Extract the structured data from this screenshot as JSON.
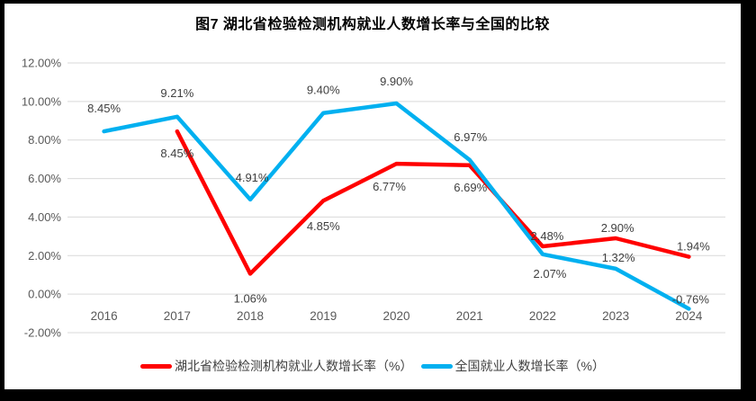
{
  "title": "图7 湖北省检验检测机构就业人数增长率与全国的比较",
  "colors": {
    "hubei_line": "#FF0000",
    "national_line": "#00B0F0",
    "gridline": "#D9D9D9",
    "axis_tick_text": "#595959",
    "data_label_text": "#404040",
    "frame": "#000000",
    "background": "#FFFFFF"
  },
  "chart_data": {
    "type": "line",
    "title": "图7 湖北省检验检测机构就业人数增长率与全国的比较",
    "categories": [
      "2016",
      "2017",
      "2018",
      "2019",
      "2020",
      "2021",
      "2022",
      "2023",
      "2024"
    ],
    "series": [
      {
        "name": "湖北省检验检测机构就业人数增长率（%）",
        "color": "#FF0000",
        "values": [
          null,
          8.45,
          1.06,
          4.85,
          6.77,
          6.69,
          2.48,
          2.9,
          1.94
        ],
        "labels": [
          null,
          "8.45%",
          "1.06%",
          "4.85%",
          "6.77%",
          "6.69%",
          "2.48%",
          "2.90%",
          "1.94%"
        ],
        "label_dx": [
          0,
          0,
          0,
          0,
          -8,
          1,
          5,
          2,
          5
        ],
        "label_dy": [
          0,
          29,
          32,
          33,
          30,
          29,
          -7,
          -7,
          -7
        ]
      },
      {
        "name": "全国就业人数增长率（%）",
        "color": "#00B0F0",
        "values": [
          8.45,
          9.21,
          4.91,
          9.4,
          9.9,
          6.97,
          2.07,
          1.32,
          -0.76
        ],
        "labels": [
          "8.45%",
          "9.21%",
          "4.91%",
          "9.40%",
          "9.90%",
          "6.97%",
          "2.07%",
          "1.32%",
          "-0.76%"
        ],
        "label_dx": [
          0,
          0,
          2,
          0,
          0,
          1,
          8,
          3,
          2
        ],
        "label_dy": [
          -21,
          -22,
          -20,
          -21,
          -20,
          -21,
          26,
          -8,
          -6
        ]
      }
    ],
    "yticks": [
      {
        "value": 12,
        "label": "12.00%"
      },
      {
        "value": 10,
        "label": "10.00%"
      },
      {
        "value": 8,
        "label": "8.00%"
      },
      {
        "value": 6,
        "label": "6.00%"
      },
      {
        "value": 4,
        "label": "4.00%"
      },
      {
        "value": 2,
        "label": "2.00%"
      },
      {
        "value": 0,
        "label": "0.00%"
      },
      {
        "value": -2,
        "label": "-2.00%"
      }
    ],
    "xlabel": "",
    "ylabel": "",
    "ylim": [
      -2,
      12
    ],
    "grid": true,
    "legend_position": "bottom"
  }
}
